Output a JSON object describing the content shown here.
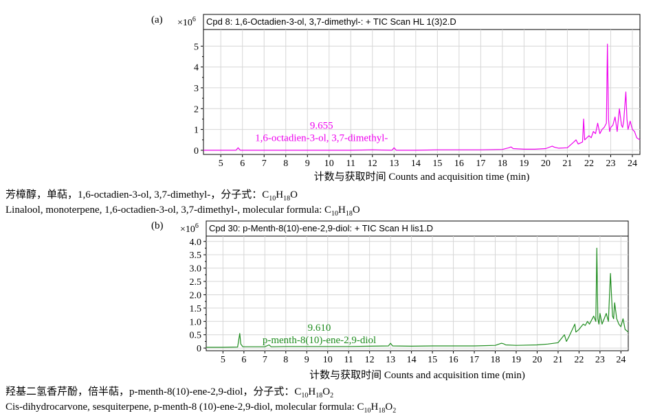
{
  "figure": {
    "panels": [
      {
        "letter": "(a)",
        "exp": "×10",
        "exp_sup": "6",
        "caption_cn": {
          "pre": "芳樟醇，单萜，1,6-octadien-3-ol, 3,7-dimethyl-，分子式：C",
          "s1": "10",
          "mid": "H",
          "s2": "18",
          "post": "O",
          "s3": ""
        },
        "caption_en": {
          "pre": "Linalool, monoterpene, 1,6-octadien-3-ol, 3,7-dimethyl-, molecular formula: C",
          "s1": "10",
          "mid": "H",
          "s2": "18",
          "post": "O",
          "s3": ""
        }
      },
      {
        "letter": "(b)",
        "exp": "×10",
        "exp_sup": "6",
        "caption_cn": {
          "pre": "羟基二氢香芹酚，倍半萜，p-menth-8(10)-ene-2,9-diol，分子式：C",
          "s1": "10",
          "mid": "H",
          "s2": "18",
          "post": "O",
          "s3": "2"
        },
        "caption_en": {
          "pre": "Cis-dihydrocarvone, sesquiterpene, p-menth-8 (10)-ene-2,9-diol, molecular formula: C",
          "s1": "10",
          "mid": "H",
          "s2": "18",
          "post": "O",
          "s3": "2"
        }
      }
    ]
  },
  "chart_data": [
    {
      "type": "line",
      "title": "Cpd 8: 1,6-Octadien-3-ol, 3,7-dimethyl-: + TIC Scan HL 1(3)2.D",
      "xlabel": "计数与获取时间 Counts and acquisition time (min)",
      "ylabel": "",
      "xlim": [
        4.2,
        24.35
      ],
      "ylim": [
        -0.2,
        5.8
      ],
      "xticks": [
        "5",
        "6",
        "7",
        "8",
        "9",
        "10",
        "11",
        "12",
        "13",
        "14",
        "15",
        "16",
        "17",
        "18",
        "19",
        "20",
        "21",
        "22",
        "23",
        "24"
      ],
      "yticks": [
        "0",
        "1",
        "2",
        "3",
        "4",
        "5"
      ],
      "grid": true,
      "color": "#ee00ee",
      "annotation": {
        "rt": "9.655",
        "name": "1,6-octadien-3-ol, 3,7-dimethyl-",
        "at": [
          9.65,
          0.45
        ]
      },
      "series": [
        {
          "x": [
            4.2,
            5.0,
            5.7,
            5.8,
            5.9,
            6.0,
            7.0,
            8.0,
            9.0,
            10.0,
            11.0,
            12.0,
            12.9,
            13.0,
            13.1,
            14.0,
            15.0,
            16.0,
            17.0,
            18.0,
            18.3,
            18.4,
            18.5,
            19.0,
            19.5,
            20.0,
            20.3,
            20.4,
            20.6,
            21.0,
            21.3,
            21.4,
            21.5,
            21.7,
            21.75,
            21.8,
            21.9,
            22.0,
            22.1,
            22.2,
            22.3,
            22.4,
            22.5,
            22.6,
            22.7,
            22.8,
            22.85,
            22.9,
            22.95,
            23.0,
            23.1,
            23.2,
            23.3,
            23.4,
            23.5,
            23.55,
            23.6,
            23.7,
            23.75,
            23.8,
            23.9,
            24.0,
            24.1,
            24.2,
            24.35
          ],
          "y": [
            0.0,
            0.0,
            0.0,
            0.12,
            0.0,
            0.0,
            0.0,
            0.0,
            0.0,
            0.0,
            0.0,
            0.02,
            0.0,
            0.12,
            0.0,
            0.0,
            0.02,
            0.02,
            0.02,
            0.04,
            0.12,
            0.16,
            0.08,
            0.05,
            0.05,
            0.08,
            0.2,
            0.15,
            0.1,
            0.12,
            0.4,
            0.5,
            0.3,
            0.4,
            1.5,
            0.5,
            0.6,
            0.7,
            0.6,
            0.9,
            0.8,
            1.3,
            0.8,
            1.0,
            1.1,
            1.3,
            5.1,
            1.5,
            0.9,
            1.1,
            1.2,
            1.6,
            0.9,
            2.0,
            1.2,
            1.1,
            1.4,
            2.8,
            1.5,
            1.0,
            1.4,
            1.0,
            0.9,
            0.6,
            0.5
          ]
        }
      ]
    },
    {
      "type": "line",
      "title": "Cpd 30: p-Menth-8(10)-ene-2,9-diol: + TIC Scan H lis1.D",
      "xlabel": "计数与获取时间 Counts and acquisition time (min)",
      "ylabel": "",
      "xlim": [
        4.2,
        24.35
      ],
      "ylim": [
        -0.1,
        4.2
      ],
      "xticks": [
        "5",
        "6",
        "7",
        "8",
        "9",
        "10",
        "11",
        "12",
        "13",
        "14",
        "15",
        "16",
        "17",
        "18",
        "19",
        "20",
        "21",
        "22",
        "23",
        "24"
      ],
      "yticks": [
        "0",
        "0.5",
        "1.0",
        "1.5",
        "2.0",
        "2.5",
        "3.0",
        "3.5",
        "4.0"
      ],
      "grid": true,
      "color": "#1e8c1e",
      "annotation": {
        "rt": "9.610",
        "name": "p-menth-8(10)-ene-2,9-diol",
        "at": [
          9.6,
          0.18
        ]
      },
      "series": [
        {
          "x": [
            4.2,
            5.0,
            5.7,
            5.8,
            5.85,
            5.95,
            6.0,
            7.0,
            7.2,
            7.3,
            8.0,
            9.0,
            9.6,
            10.0,
            11.0,
            12.0,
            12.9,
            13.0,
            13.1,
            14.0,
            15.0,
            16.0,
            17.0,
            18.0,
            18.3,
            18.4,
            18.5,
            19.0,
            20.0,
            20.5,
            21.0,
            21.3,
            21.4,
            21.5,
            21.8,
            21.85,
            22.0,
            22.1,
            22.2,
            22.3,
            22.4,
            22.5,
            22.7,
            22.8,
            22.85,
            22.9,
            22.95,
            23.0,
            23.1,
            23.2,
            23.3,
            23.4,
            23.5,
            23.6,
            23.65,
            23.7,
            23.8,
            23.9,
            24.0,
            24.1,
            24.2,
            24.35
          ],
          "y": [
            0.03,
            0.03,
            0.04,
            0.55,
            0.15,
            0.05,
            0.05,
            0.05,
            0.12,
            0.05,
            0.06,
            0.06,
            0.06,
            0.06,
            0.06,
            0.07,
            0.08,
            0.18,
            0.08,
            0.07,
            0.08,
            0.08,
            0.08,
            0.1,
            0.18,
            0.16,
            0.12,
            0.1,
            0.12,
            0.15,
            0.2,
            0.5,
            0.25,
            0.4,
            0.9,
            0.6,
            0.7,
            0.8,
            0.9,
            0.85,
            1.0,
            0.9,
            1.2,
            1.0,
            3.75,
            1.1,
            0.9,
            1.3,
            0.9,
            1.1,
            1.3,
            1.0,
            2.8,
            1.2,
            1.1,
            1.7,
            1.1,
            0.9,
            0.8,
            1.1,
            0.7,
            0.6
          ]
        }
      ]
    }
  ]
}
